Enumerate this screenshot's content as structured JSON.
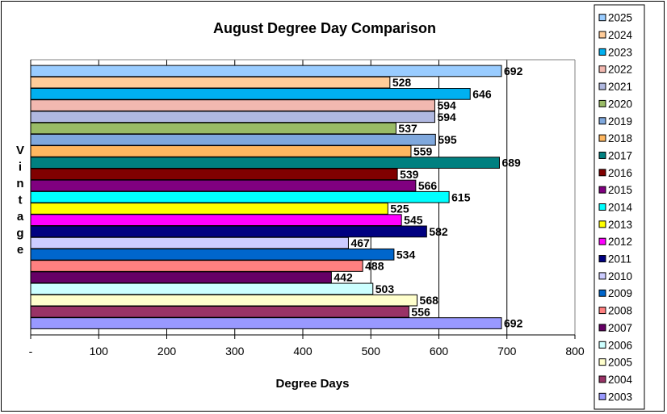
{
  "chart_data": {
    "type": "bar",
    "orientation": "horizontal",
    "title": "August Degree Day Comparison",
    "xlabel": "Degree Days",
    "ylabel": "Vintage",
    "xlim": [
      0,
      800
    ],
    "x_ticks": [
      "-",
      "100",
      "200",
      "300",
      "400",
      "500",
      "600",
      "700",
      "800"
    ],
    "grid": "vertical major gridlines",
    "legend_position": "right",
    "series": [
      {
        "name": "2025",
        "value": 692,
        "color": "#99CCFF"
      },
      {
        "name": "2024",
        "value": 528,
        "color": "#FFCC99"
      },
      {
        "name": "2023",
        "value": 646,
        "color": "#00B0F0"
      },
      {
        "name": "2022",
        "value": 594,
        "color": "#F2B8B0"
      },
      {
        "name": "2021",
        "value": 594,
        "color": "#B0B8E0"
      },
      {
        "name": "2020",
        "value": 537,
        "color": "#99BB66"
      },
      {
        "name": "2019",
        "value": 595,
        "color": "#7FA8DD"
      },
      {
        "name": "2018",
        "value": 559,
        "color": "#FFB760"
      },
      {
        "name": "2017",
        "value": 689,
        "color": "#008080"
      },
      {
        "name": "2016",
        "value": 539,
        "color": "#800000"
      },
      {
        "name": "2015",
        "value": 566,
        "color": "#800080"
      },
      {
        "name": "2014",
        "value": 615,
        "color": "#00FFFF"
      },
      {
        "name": "2013",
        "value": 525,
        "color": "#FFFF00"
      },
      {
        "name": "2012",
        "value": 545,
        "color": "#FF00FF"
      },
      {
        "name": "2011",
        "value": 582,
        "color": "#000080"
      },
      {
        "name": "2010",
        "value": 467,
        "color": "#CCCCFF"
      },
      {
        "name": "2009",
        "value": 534,
        "color": "#0066CC"
      },
      {
        "name": "2008",
        "value": 488,
        "color": "#FF8080"
      },
      {
        "name": "2007",
        "value": 442,
        "color": "#660066"
      },
      {
        "name": "2006",
        "value": 503,
        "color": "#CCFFFF"
      },
      {
        "name": "2005",
        "value": 568,
        "color": "#FFFFCC"
      },
      {
        "name": "2004",
        "value": 556,
        "color": "#993366"
      },
      {
        "name": "2003",
        "value": 692,
        "color": "#9999FF"
      }
    ]
  }
}
